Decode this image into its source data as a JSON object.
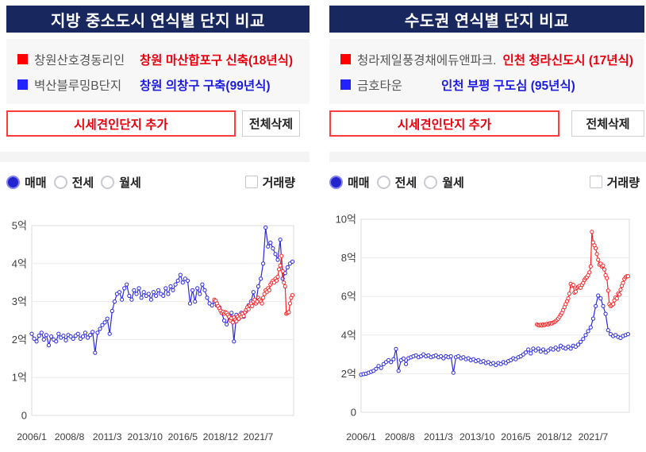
{
  "panels": [
    {
      "title": "지방 중소도시 연식별 단지 비교",
      "legend": [
        {
          "name": "창원산호경동리인",
          "location": "창원 마산합포구 신축(18년식)",
          "marker_color": "#ff0000",
          "text_color": "#e8000d"
        },
        {
          "name": "벽산블루밍B단지",
          "location": "창원 의창구 구축(99년식)",
          "marker_color": "#2222ff",
          "text_color": "#1a1ae0"
        }
      ],
      "add_button": "시세견인단지 추가",
      "clear_button": "전체삭제",
      "radios": [
        {
          "label": "매매",
          "selected": true
        },
        {
          "label": "전세",
          "selected": false
        },
        {
          "label": "월세",
          "selected": false
        }
      ],
      "volume_checkbox": {
        "label": "거래량",
        "checked": false
      },
      "chart_data": {
        "type": "line",
        "x_tick_labels": [
          "2006/1",
          "2008/8",
          "2011/3",
          "2013/10",
          "2016/5",
          "2018/12",
          "2021/7"
        ],
        "x_tick_months": [
          0,
          31,
          62,
          93,
          124,
          155,
          186
        ],
        "total_months": 215,
        "y_tick_labels": [
          "5억",
          "4억",
          "3억",
          "2억",
          "1억",
          "0"
        ],
        "ylim": [
          0,
          5
        ],
        "grid": true,
        "series": [
          {
            "name": "벽산블루밍B단지",
            "color": "#2a2ae0",
            "start_month": 0,
            "step": 2,
            "values": [
              2.15,
              2.02,
              1.95,
              2.1,
              2.18,
              2.0,
              2.12,
              1.85,
              2.08,
              2.0,
              1.95,
              2.15,
              2.05,
              2.1,
              1.98,
              2.12,
              2.08,
              2.02,
              2.1,
              2.15,
              2.02,
              2.08,
              2.18,
              2.05,
              2.12,
              2.2,
              1.65,
              2.18,
              2.28,
              2.38,
              2.45,
              2.55,
              2.15,
              2.75,
              3.0,
              3.2,
              3.25,
              3.05,
              3.35,
              3.45,
              3.15,
              3.05,
              3.3,
              3.2,
              3.35,
              3.1,
              3.25,
              3.15,
              3.2,
              3.05,
              3.25,
              3.15,
              3.3,
              3.2,
              3.15,
              3.35,
              3.2,
              3.4,
              3.3,
              3.45,
              3.55,
              3.7,
              3.5,
              3.6,
              3.55,
              2.95,
              3.3,
              3.0,
              3.35,
              3.2,
              3.45,
              3.3,
              3.1,
              2.95,
              2.9,
              3.0,
              2.9,
              2.85,
              2.7,
              2.5,
              2.4,
              2.6,
              2.7,
              1.95,
              2.65,
              2.55,
              2.7,
              2.6,
              2.75,
              2.9,
              3.0,
              3.25,
              2.95,
              3.4,
              3.6,
              4.0,
              4.95,
              4.45,
              4.55,
              4.4,
              4.25,
              4.1,
              4.63,
              3.6,
              3.75,
              3.9,
              4.0,
              4.05
            ]
          },
          {
            "name": "창원산호경동리인",
            "color": "#ff2222",
            "start_month": 150,
            "step": 1,
            "values": [
              3.05,
              3.02,
              2.95,
              2.88,
              2.82,
              2.76,
              2.7,
              2.73,
              2.68,
              2.72,
              2.7,
              2.65,
              2.6,
              2.5,
              2.56,
              2.45,
              2.58,
              2.52,
              2.48,
              2.6,
              2.55,
              2.65,
              2.6,
              2.68,
              2.62,
              2.72,
              2.78,
              2.85,
              2.8,
              2.9,
              2.95,
              2.88,
              3.0,
              3.05,
              2.95,
              3.0,
              3.1,
              3.05,
              3.0,
              2.95,
              3.1,
              3.2,
              3.3,
              3.25,
              3.35,
              3.3,
              3.45,
              3.5,
              3.55,
              3.5,
              3.6,
              3.55,
              3.65,
              3.85,
              3.95,
              4.2,
              3.8,
              3.5,
              3.4,
              2.68,
              2.7,
              2.72,
              2.95,
              3.1,
              3.17
            ]
          }
        ]
      }
    },
    {
      "title": "수도권 연식별 단지 비교",
      "legend": [
        {
          "name": "청라제일풍경채에듀앤파크.",
          "location": "인천 청라신도시 (17년식)",
          "marker_color": "#ff0000",
          "text_color": "#e8000d"
        },
        {
          "name": "금호타운",
          "location": "인천 부평 구도심 (95년식)",
          "marker_color": "#2222ff",
          "text_color": "#1a1ae0"
        }
      ],
      "add_button": "시세견인단지 추가",
      "clear_button": "전체삭제",
      "radios": [
        {
          "label": "매매",
          "selected": true
        },
        {
          "label": "전세",
          "selected": false
        },
        {
          "label": "월세",
          "selected": false
        }
      ],
      "volume_checkbox": {
        "label": "거래량",
        "checked": false
      },
      "chart_data": {
        "type": "line",
        "x_tick_labels": [
          "2006/1",
          "2008/8",
          "2011/3",
          "2013/10",
          "2016/5",
          "2018/12",
          "2021/7"
        ],
        "x_tick_months": [
          0,
          31,
          62,
          93,
          124,
          155,
          186
        ],
        "total_months": 215,
        "y_tick_labels": [
          "10억",
          "8억",
          "6억",
          "4억",
          "2억",
          "0"
        ],
        "ylim": [
          0,
          10
        ],
        "grid": true,
        "series": [
          {
            "name": "금호타운",
            "color": "#2a2ae0",
            "start_month": 0,
            "step": 2,
            "values": [
              1.95,
              1.98,
              2.0,
              2.05,
              2.1,
              2.15,
              2.25,
              2.4,
              2.3,
              2.5,
              2.6,
              2.7,
              2.6,
              2.75,
              3.28,
              2.15,
              2.7,
              2.78,
              2.5,
              2.8,
              2.85,
              2.9,
              2.95,
              2.85,
              2.9,
              3.0,
              2.9,
              2.95,
              2.85,
              2.9,
              2.95,
              2.85,
              2.9,
              2.8,
              2.9,
              2.85,
              2.9,
              2.05,
              2.85,
              2.9,
              2.8,
              2.85,
              2.75,
              2.8,
              2.7,
              2.75,
              2.65,
              2.7,
              2.6,
              2.65,
              2.55,
              2.6,
              2.5,
              2.55,
              2.45,
              2.55,
              2.5,
              2.6,
              2.55,
              2.65,
              2.7,
              2.8,
              2.75,
              2.85,
              2.9,
              3.0,
              3.1,
              3.25,
              3.05,
              3.3,
              3.2,
              3.3,
              3.15,
              3.25,
              3.1,
              3.2,
              3.3,
              3.25,
              3.35,
              3.25,
              3.45,
              3.35,
              3.3,
              3.4,
              3.3,
              3.45,
              3.4,
              3.5,
              3.65,
              3.8,
              4.0,
              4.2,
              4.4,
              4.85,
              5.5,
              6.05,
              5.9,
              5.5,
              5.1,
              4.25,
              4.05,
              3.95,
              4.0,
              3.9,
              3.85,
              3.95,
              4.0,
              4.05
            ]
          },
          {
            "name": "청라제일풍경채에듀앤파크",
            "color": "#ff2222",
            "start_month": 141,
            "step": 1,
            "values": [
              4.55,
              4.52,
              4.5,
              4.53,
              4.5,
              4.55,
              4.52,
              4.55,
              4.58,
              4.55,
              4.6,
              4.62,
              4.6,
              4.65,
              4.68,
              4.72,
              4.78,
              4.85,
              4.95,
              5.05,
              5.15,
              5.3,
              5.45,
              5.6,
              5.75,
              5.9,
              6.15,
              6.65,
              6.55,
              6.6,
              6.2,
              6.25,
              6.45,
              6.5,
              6.55,
              6.45,
              6.6,
              6.7,
              6.85,
              6.95,
              7.0,
              7.1,
              7.25,
              7.55,
              9.35,
              8.8,
              8.65,
              8.5,
              8.2,
              7.9,
              7.65,
              7.7,
              7.55,
              7.6,
              7.4,
              7.1,
              6.95,
              6.3,
              5.6,
              5.5,
              5.55,
              5.6,
              5.8,
              5.95,
              5.9,
              6.15,
              6.1,
              6.35,
              6.55,
              6.7,
              6.9,
              7.0,
              7.05,
              7.05
            ]
          }
        ]
      }
    }
  ]
}
